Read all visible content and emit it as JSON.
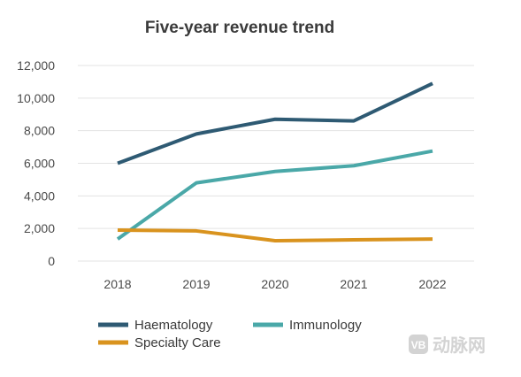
{
  "chart_data": {
    "type": "line",
    "title": "Five-year revenue trend",
    "xlabel": "",
    "ylabel": "",
    "categories": [
      "2018",
      "2019",
      "2020",
      "2021",
      "2022"
    ],
    "yticks": [
      "0",
      "2,000",
      "4,000",
      "6,000",
      "8,000",
      "10,000",
      "12,000"
    ],
    "ylim": [
      0,
      12000
    ],
    "grid": true,
    "legend_position": "bottom",
    "series": [
      {
        "name": "Haematology",
        "color": "#2e5a73",
        "values": [
          6000,
          7800,
          8700,
          8600,
          10900
        ]
      },
      {
        "name": "Immunology",
        "color": "#4aa8a8",
        "values": [
          1350,
          4800,
          5500,
          5850,
          6750
        ]
      },
      {
        "name": "Specialty Care",
        "color": "#d9931e",
        "values": [
          1900,
          1850,
          1250,
          1300,
          1350
        ]
      }
    ]
  },
  "watermark": {
    "text": "动脉网",
    "icon": "vb-logo-icon",
    "color": "#d3d3d3"
  }
}
